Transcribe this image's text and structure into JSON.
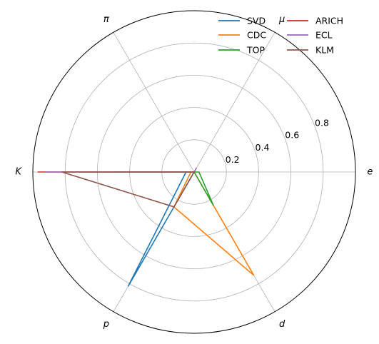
{
  "chart_data": {
    "type": "radar",
    "axes": [
      "e",
      "μ",
      "π",
      "K",
      "p",
      "d"
    ],
    "radial_ticks": [
      "0.2",
      "0.4",
      "0.6",
      "0.8"
    ],
    "rlim": [
      0,
      1.0
    ],
    "legend_position": "top-right",
    "series": [
      {
        "name": "SVD",
        "color": "#1f77b4",
        "values": [
          0.0,
          0.0,
          0.0,
          0.05,
          0.82,
          0.0
        ]
      },
      {
        "name": "CDC",
        "color": "#ff7f0e",
        "values": [
          0.0,
          0.0,
          0.0,
          0.02,
          0.25,
          0.74
        ]
      },
      {
        "name": "TOP",
        "color": "#2ca02c",
        "values": [
          0.03,
          0.0,
          0.0,
          0.5,
          0.0,
          0.24
        ]
      },
      {
        "name": "ARICH",
        "color": "#d62728",
        "values": [
          0.0,
          0.0,
          0.0,
          0.97,
          0.0,
          0.0
        ]
      },
      {
        "name": "ECL",
        "color": "#9467bd",
        "values": [
          0.0,
          0.03,
          0.0,
          0.92,
          0.0,
          0.0
        ]
      },
      {
        "name": "KLM",
        "color": "#8c564b",
        "values": [
          0.0,
          0.0,
          0.0,
          0.82,
          0.25,
          0.0
        ]
      }
    ]
  }
}
